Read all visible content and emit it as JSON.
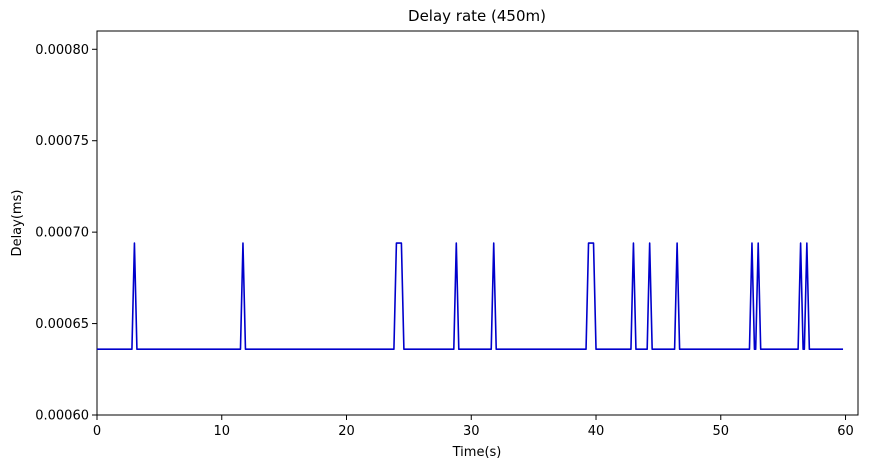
{
  "chart_data": {
    "type": "line",
    "title": "Delay rate (450m)",
    "xlabel": "Time(s)",
    "ylabel": "Delay(ms)",
    "xlim": [
      0,
      61
    ],
    "ylim": [
      0.0006,
      0.00081
    ],
    "xticks": [
      0,
      10,
      20,
      30,
      40,
      50,
      60
    ],
    "xtick_labels": [
      "0",
      "10",
      "20",
      "30",
      "40",
      "50",
      "60"
    ],
    "yticks": [
      0.0006,
      0.00065,
      0.0007,
      0.00075,
      0.0008
    ],
    "ytick_labels": [
      "0.00060",
      "0.00065",
      "0.00070",
      "0.00075",
      "0.00080"
    ],
    "grid": false,
    "legend": null,
    "series": [
      {
        "color": "#0000cc",
        "x": [
          0,
          2.8,
          3.0,
          3.2,
          11.5,
          11.7,
          11.9,
          23.8,
          24.0,
          24.4,
          24.6,
          28.6,
          28.8,
          29.0,
          31.6,
          31.8,
          32.0,
          39.2,
          39.4,
          39.8,
          40.0,
          42.8,
          43.0,
          43.2,
          44.1,
          44.3,
          44.5,
          46.3,
          46.5,
          46.7,
          52.3,
          52.5,
          52.7,
          52.8,
          53.0,
          53.2,
          56.2,
          56.4,
          56.6,
          56.7,
          56.9,
          57.1,
          59.8
        ],
        "y": [
          0.000636,
          0.000636,
          0.000694,
          0.000636,
          0.000636,
          0.000694,
          0.000636,
          0.000636,
          0.000694,
          0.000694,
          0.000636,
          0.000636,
          0.000694,
          0.000636,
          0.000636,
          0.000694,
          0.000636,
          0.000636,
          0.000694,
          0.000694,
          0.000636,
          0.000636,
          0.000694,
          0.000636,
          0.000636,
          0.000694,
          0.000636,
          0.000636,
          0.000694,
          0.000636,
          0.000636,
          0.000694,
          0.000636,
          0.000636,
          0.000694,
          0.000636,
          0.000636,
          0.000694,
          0.000636,
          0.000636,
          0.000694,
          0.000636,
          0.000636
        ]
      }
    ]
  }
}
